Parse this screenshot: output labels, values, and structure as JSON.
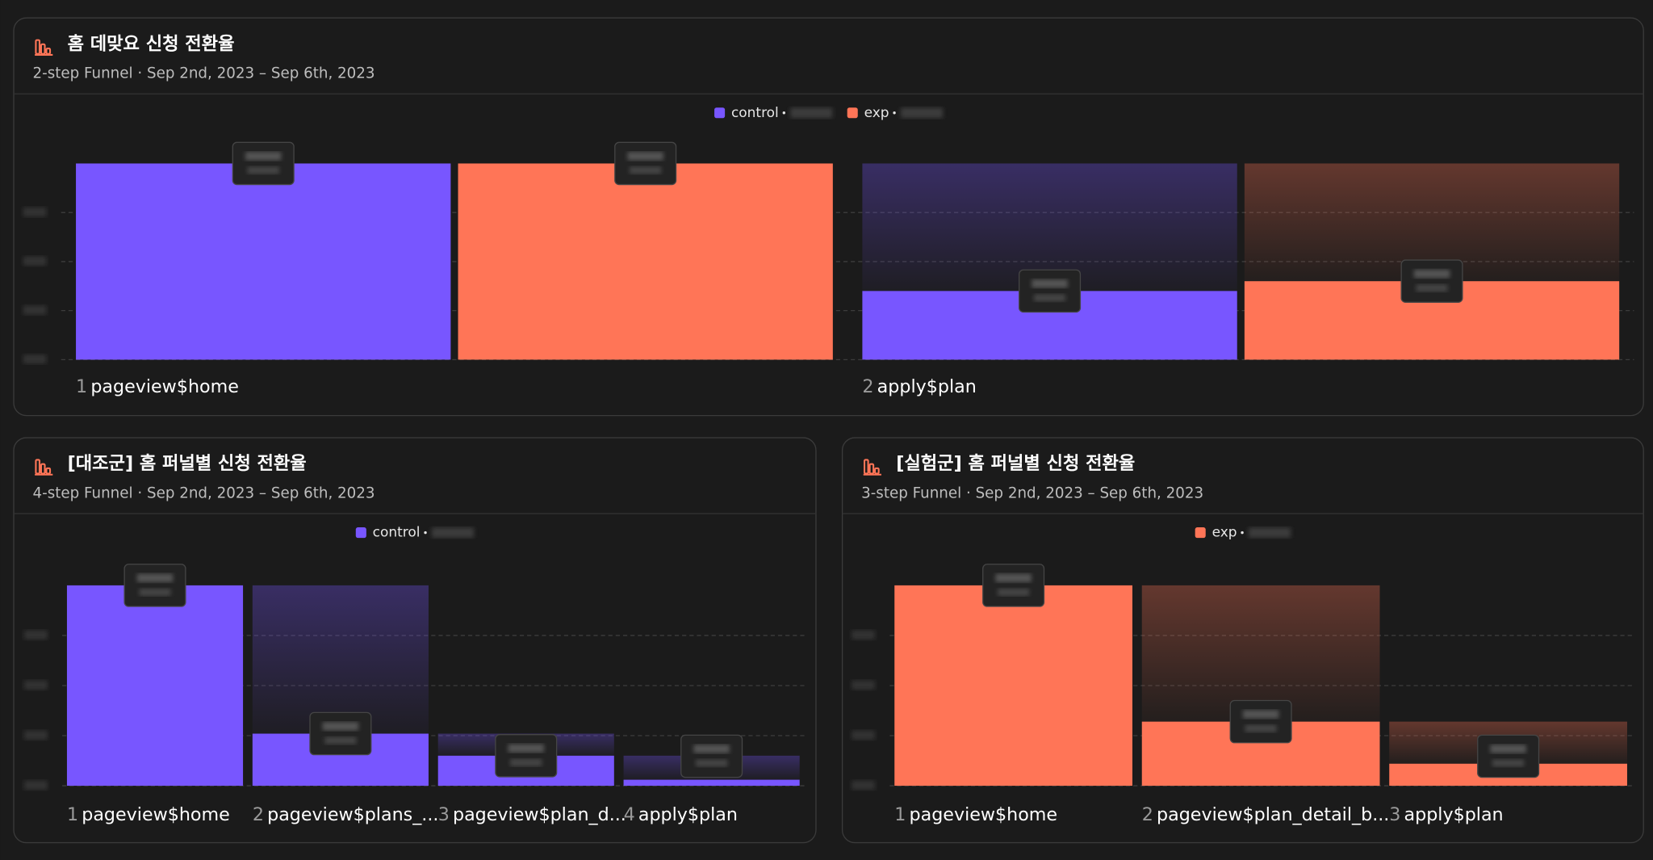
{
  "chart_data": [
    {
      "type": "funnel",
      "title": "홈 데맞요 신청 전환율",
      "subtitle": "2-step Funnel · Sep 2nd, 2023 – Sep 6th, 2023",
      "steps": [
        {
          "number": 1,
          "name": "pageview$home"
        },
        {
          "number": 2,
          "name": "apply$plan"
        }
      ],
      "series": [
        {
          "name": "control",
          "color": "#7856ff",
          "values": [
            100,
            35
          ]
        },
        {
          "name": "exp",
          "color": "#ff7557",
          "values": [
            100,
            40
          ]
        }
      ],
      "ylim": [
        0,
        100
      ],
      "yticks": [
        0,
        25,
        50,
        75
      ],
      "grid": true
    },
    {
      "type": "funnel",
      "title": "[대조군] 홈 퍼널별 신청 전환율",
      "subtitle": "4-step Funnel · Sep 2nd, 2023 – Sep 6th, 2023",
      "steps": [
        {
          "number": 1,
          "name": "pageview$home"
        },
        {
          "number": 2,
          "name": "pageview$plans_..."
        },
        {
          "number": 3,
          "name": "pageview$plan_d..."
        },
        {
          "number": 4,
          "name": "apply$plan"
        }
      ],
      "series": [
        {
          "name": "control",
          "color": "#7856ff",
          "values": [
            100,
            26,
            15,
            3
          ]
        }
      ],
      "ylim": [
        0,
        100
      ],
      "yticks": [
        0,
        25,
        50,
        75
      ],
      "grid": true
    },
    {
      "type": "funnel",
      "title": "[실험군] 홈 퍼널별 신청 전환율",
      "subtitle": "3-step Funnel · Sep 2nd, 2023 – Sep 6th, 2023",
      "steps": [
        {
          "number": 1,
          "name": "pageview$home"
        },
        {
          "number": 2,
          "name": "pageview$plan_detail_b..."
        },
        {
          "number": 3,
          "name": "apply$plan"
        }
      ],
      "series": [
        {
          "name": "exp",
          "color": "#ff7557",
          "values": [
            100,
            32,
            11
          ]
        }
      ],
      "ylim": [
        0,
        100
      ],
      "yticks": [
        0,
        25,
        50,
        75
      ],
      "grid": true
    }
  ]
}
